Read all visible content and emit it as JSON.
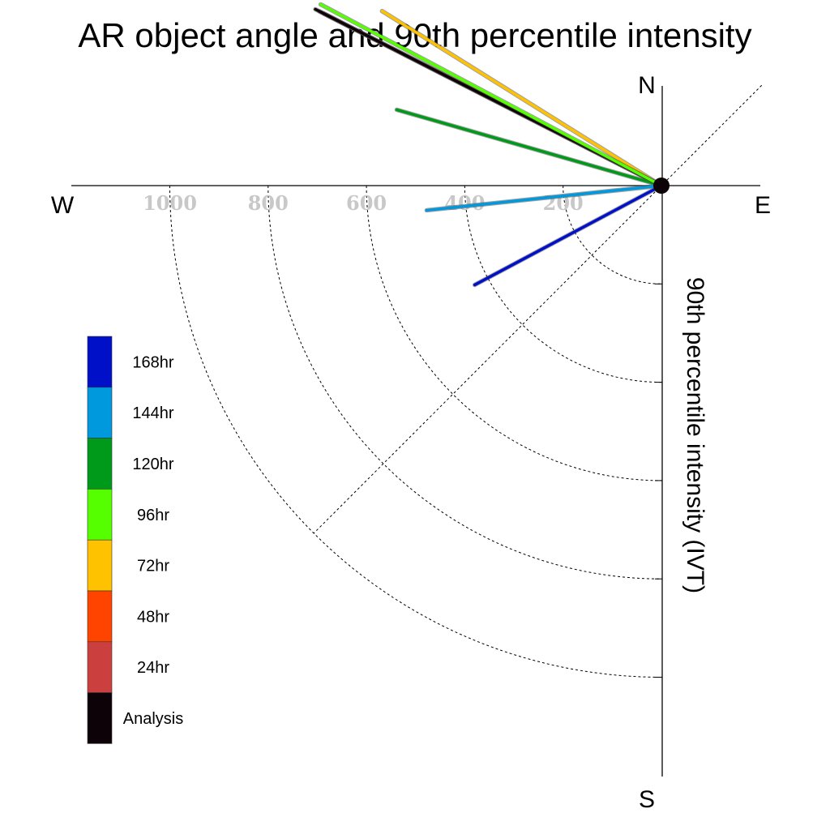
{
  "chart_data": {
    "type": "polar-vector",
    "title": "AR object angle and 90th percentile intensity",
    "ylabel": "90th percentile intensity (IVT)",
    "compass": {
      "north": "N",
      "south": "S",
      "east": "E",
      "west": "W"
    },
    "radial_ticks": [
      "200",
      "400",
      "600",
      "800",
      "1000"
    ],
    "radial_tick_values": [
      200,
      400,
      600,
      800,
      1000
    ],
    "series": [
      {
        "name": "Analysis",
        "color": "#0c0208",
        "angle_deg": 153,
        "intensity": 790
      },
      {
        "name": "24hr",
        "color": "#cc3f3f",
        "angle_deg": 153,
        "intensity": 780
      },
      {
        "name": "48hr",
        "color": "#ff4400",
        "angle_deg": 153,
        "intensity": 770
      },
      {
        "name": "72hr",
        "color": "#ffc200",
        "angle_deg": 148,
        "intensity": 670
      },
      {
        "name": "96hr",
        "color": "#55ff00",
        "angle_deg": 152,
        "intensity": 785
      },
      {
        "name": "120hr",
        "color": "#009a1a",
        "angle_deg": 164,
        "intensity": 560
      },
      {
        "name": "144hr",
        "color": "#0099dd",
        "angle_deg": 186,
        "intensity": 480
      },
      {
        "name": "168hr",
        "color": "#0010c8",
        "angle_deg": 208,
        "intensity": 430
      }
    ],
    "legend": {
      "placement": "left",
      "entries": [
        {
          "label": "168hr",
          "color": "#0010c8"
        },
        {
          "label": "144hr",
          "color": "#0099dd"
        },
        {
          "label": "120hr",
          "color": "#009a1a"
        },
        {
          "label": "96hr",
          "color": "#55ff00"
        },
        {
          "label": "72hr",
          "color": "#ffc200"
        },
        {
          "label": "48hr",
          "color": "#ff4400"
        },
        {
          "label": "24hr",
          "color": "#cc3f3f"
        },
        {
          "label": "Analysis",
          "color": "#0c0208"
        }
      ]
    }
  }
}
